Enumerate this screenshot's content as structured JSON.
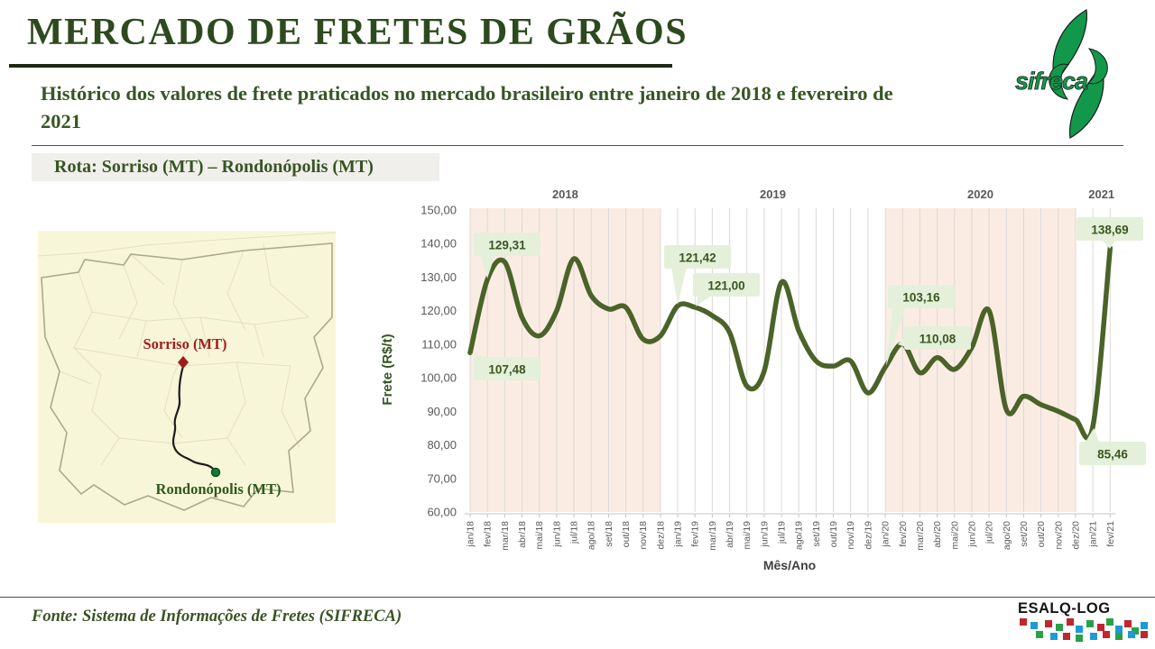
{
  "header": {
    "title": "MERCADO DE FRETES DE GRÃOS",
    "subtitle": "Histórico dos valores de frete praticados no mercado brasileiro entre janeiro de 2018 e fevereiro de 2021",
    "route_label": "Rota: Sorriso (MT) – Rondonópolis (MT)"
  },
  "logos": {
    "sifreca": "sifreca",
    "esalq": "ESALQ-LOG"
  },
  "map": {
    "origin_label": "Sorriso (MT)",
    "destination_label": "Rondonópolis (MT)"
  },
  "footer": {
    "source": "Fonte: Sistema de Informações de Fretes (SIFRECA)"
  },
  "colors": {
    "title_green": "#2d4a1e",
    "subtitle_green": "#375623",
    "line_green": "#4a6328",
    "band_pink": "#fbece3",
    "callout_bg": "#e4f0da",
    "callout_text": "#39571f",
    "axis_gray": "#595959",
    "axis_title": "#3f3f3f",
    "gridline": "#dcd9d6",
    "map_bg": "#f8f6d8",
    "sorriso_red": "#a21d1d",
    "rondonopolis_green": "#2d5a1e",
    "logo_green": "#12984a"
  },
  "chart_data": {
    "type": "line",
    "title": "",
    "xlabel": "Mês/Ano",
    "ylabel": "Frete (R$/t)",
    "ylim": [
      60,
      150
    ],
    "ytick_step": 10,
    "grid": "vertical-monthly",
    "legend": "none",
    "categories": [
      "jan/18",
      "fev/18",
      "mar/18",
      "abr/18",
      "mai/18",
      "jun/18",
      "jul/18",
      "ago/18",
      "set/18",
      "out/18",
      "nov/18",
      "dez/18",
      "jan/19",
      "fev/19",
      "mar/19",
      "abr/19",
      "mai/19",
      "jun/19",
      "jul/19",
      "ago/19",
      "set/19",
      "out/19",
      "nov/19",
      "dez/19",
      "jan/20",
      "fev/20",
      "mar/20",
      "abr/20",
      "mai/20",
      "jun/20",
      "jul/20",
      "ago/20",
      "set/20",
      "out/20",
      "nov/20",
      "dez/20",
      "jan/21",
      "fev/21"
    ],
    "values": [
      107.48,
      129.31,
      134.5,
      118,
      112.5,
      120,
      135.5,
      124.5,
      120.5,
      121,
      111.5,
      112.5,
      121.42,
      121,
      118.5,
      113.5,
      97.5,
      102,
      128.5,
      114,
      105,
      103.5,
      105,
      95.5,
      103.16,
      110.08,
      101.5,
      106,
      102.5,
      109,
      120,
      90.5,
      94.5,
      92,
      90,
      87.5,
      85.46,
      138.69
    ],
    "year_labels": [
      "2018",
      "2019",
      "2020",
      "2021"
    ],
    "shaded_year_bands": [
      "2018",
      "2020"
    ],
    "point_labels": [
      {
        "category": "jan/18",
        "label": "107,48"
      },
      {
        "category": "fev/18",
        "label": "129,31"
      },
      {
        "category": "jan/19",
        "label": "121,42"
      },
      {
        "category": "fev/19",
        "label": "121,00"
      },
      {
        "category": "jan/20",
        "label": "103,16"
      },
      {
        "category": "fev/20",
        "label": "110,08"
      },
      {
        "category": "jan/21",
        "label": "85,46"
      },
      {
        "category": "fev/21",
        "label": "138,69"
      }
    ]
  }
}
